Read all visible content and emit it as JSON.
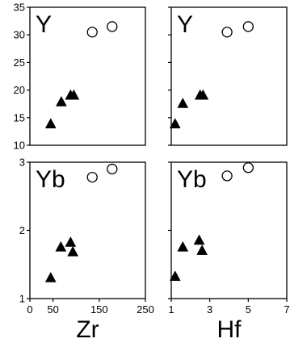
{
  "chart_data": [
    {
      "type": "scatter",
      "panel_label": "Y",
      "x_variable": "Zr",
      "xlim": [
        0,
        250
      ],
      "ylim": [
        10,
        35
      ],
      "yticks": [
        10,
        15,
        20,
        25,
        30,
        35
      ],
      "series": [
        {
          "marker": "triangle-filled",
          "points": [
            [
              45,
              13.8
            ],
            [
              68,
              17.8
            ],
            [
              88,
              19.0
            ],
            [
              95,
              19.0
            ]
          ]
        },
        {
          "marker": "circle-open",
          "points": [
            [
              135,
              30.5
            ],
            [
              178,
              31.5
            ]
          ]
        }
      ]
    },
    {
      "type": "scatter",
      "panel_label": "Y",
      "x_variable": "Hf",
      "xlim": [
        1,
        7
      ],
      "ylim": [
        10,
        35
      ],
      "series": [
        {
          "marker": "triangle-filled",
          "points": [
            [
              1.2,
              13.8
            ],
            [
              1.6,
              17.5
            ],
            [
              2.5,
              19.0
            ],
            [
              2.65,
              19.0
            ]
          ]
        },
        {
          "marker": "circle-open",
          "points": [
            [
              3.9,
              30.5
            ],
            [
              5.0,
              31.5
            ]
          ]
        }
      ]
    },
    {
      "type": "scatter",
      "panel_label": "Yb",
      "x_variable": "Zr",
      "xlim": [
        0,
        250
      ],
      "ylim": [
        1,
        3
      ],
      "yticks": [
        1,
        2,
        3
      ],
      "series": [
        {
          "marker": "triangle-filled",
          "points": [
            [
              45,
              1.3
            ],
            [
              67,
              1.75
            ],
            [
              88,
              1.82
            ],
            [
              93,
              1.68
            ]
          ]
        },
        {
          "marker": "circle-open",
          "points": [
            [
              135,
              2.78
            ],
            [
              178,
              2.9
            ]
          ]
        }
      ]
    },
    {
      "type": "scatter",
      "panel_label": "Yb",
      "x_variable": "Hf",
      "xlim": [
        1,
        7
      ],
      "ylim": [
        1,
        3
      ],
      "series": [
        {
          "marker": "triangle-filled",
          "points": [
            [
              1.2,
              1.32
            ],
            [
              1.6,
              1.75
            ],
            [
              2.45,
              1.85
            ],
            [
              2.6,
              1.7
            ]
          ]
        },
        {
          "marker": "circle-open",
          "points": [
            [
              3.9,
              2.8
            ],
            [
              5.0,
              2.92
            ]
          ]
        }
      ]
    }
  ],
  "x_axes": [
    {
      "title": "Zr",
      "ticks": [
        "0",
        "50",
        "150",
        "250"
      ],
      "tick_values": [
        0,
        50,
        150,
        250
      ]
    },
    {
      "title": "Hf",
      "ticks": [
        "1",
        "3",
        "5",
        "7"
      ],
      "tick_values": [
        1,
        3,
        5,
        7
      ]
    }
  ]
}
